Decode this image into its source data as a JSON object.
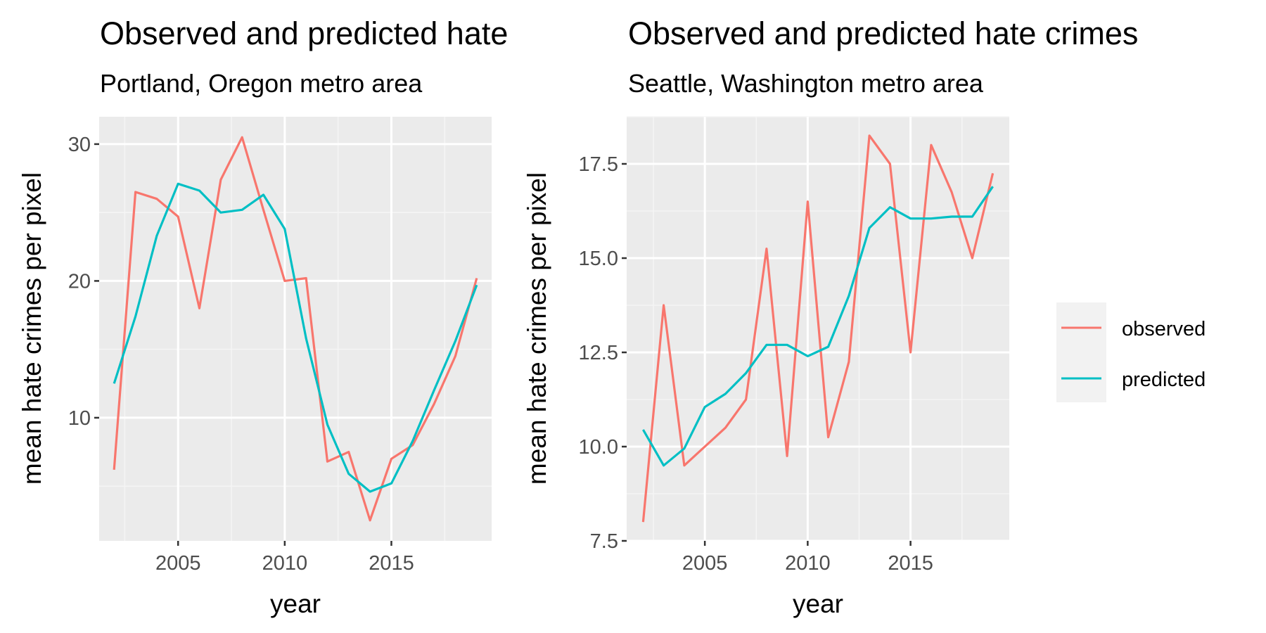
{
  "chart_data": [
    {
      "type": "line",
      "title": "Observed and predicted hate crimes",
      "subtitle": "Portland, Oregon metro area",
      "xlabel": "year",
      "ylabel": "mean hate crimes per pixel",
      "xlim": [
        2001.3,
        2019.7
      ],
      "ylim": [
        1.0,
        32.0
      ],
      "xticks": [
        2005,
        2010,
        2015
      ],
      "yticks": [
        10,
        20,
        30
      ],
      "grid": true,
      "x": [
        2002,
        2003,
        2004,
        2005,
        2006,
        2007,
        2008,
        2009,
        2010,
        2011,
        2012,
        2013,
        2014,
        2015,
        2016,
        2017,
        2018,
        2019
      ],
      "series": [
        {
          "name": "observed",
          "color": "#F8766D",
          "values": [
            6.2,
            26.5,
            26.0,
            24.7,
            18.0,
            27.4,
            30.5,
            25.2,
            20.0,
            20.2,
            6.8,
            7.5,
            2.5,
            7.0,
            8.0,
            11.0,
            14.5,
            20.2
          ]
        },
        {
          "name": "predicted",
          "color": "#00BFC4",
          "values": [
            12.5,
            17.4,
            23.3,
            27.1,
            26.6,
            25.0,
            25.2,
            26.3,
            23.8,
            15.8,
            9.5,
            5.9,
            4.6,
            5.2,
            8.3,
            12.0,
            15.6,
            19.7
          ]
        }
      ]
    },
    {
      "type": "line",
      "title": "Observed and predicted hate crimes",
      "subtitle": "Seattle, Washington metro area",
      "xlabel": "year",
      "ylabel": "mean hate crimes per pixel",
      "xlim": [
        2001.2,
        2019.8
      ],
      "ylim": [
        7.5,
        18.75
      ],
      "xticks": [
        2005,
        2010,
        2015
      ],
      "yticks": [
        7.5,
        10.0,
        12.5,
        15.0,
        17.5
      ],
      "ytick_labels": [
        "7.5",
        "10.0",
        "12.5",
        "15.0",
        "17.5"
      ],
      "grid": true,
      "x": [
        2002,
        2003,
        2004,
        2005,
        2006,
        2007,
        2008,
        2009,
        2010,
        2011,
        2012,
        2013,
        2014,
        2015,
        2016,
        2017,
        2018,
        2019
      ],
      "series": [
        {
          "name": "observed",
          "color": "#F8766D",
          "values": [
            8.0,
            13.75,
            9.5,
            10.0,
            10.5,
            11.25,
            15.25,
            9.75,
            16.5,
            10.25,
            12.25,
            18.25,
            17.5,
            12.5,
            18.0,
            16.75,
            15.0,
            17.25
          ]
        },
        {
          "name": "predicted",
          "color": "#00BFC4",
          "values": [
            10.45,
            9.5,
            9.95,
            11.05,
            11.4,
            11.95,
            12.7,
            12.7,
            12.4,
            12.65,
            14.0,
            15.8,
            16.35,
            16.05,
            16.05,
            16.1,
            16.1,
            16.9
          ]
        }
      ]
    }
  ],
  "legend": {
    "placement": "right",
    "items": [
      {
        "label": "observed",
        "color": "#F8766D"
      },
      {
        "label": "predicted",
        "color": "#00BFC4"
      }
    ]
  },
  "style": {
    "panel_background": "#EBEBEB",
    "grid_major": "#FFFFFF",
    "grid_minor": "#F5F5F5",
    "legend_key_background": "#F2F2F2",
    "tick_text": "#4D4D4D"
  }
}
